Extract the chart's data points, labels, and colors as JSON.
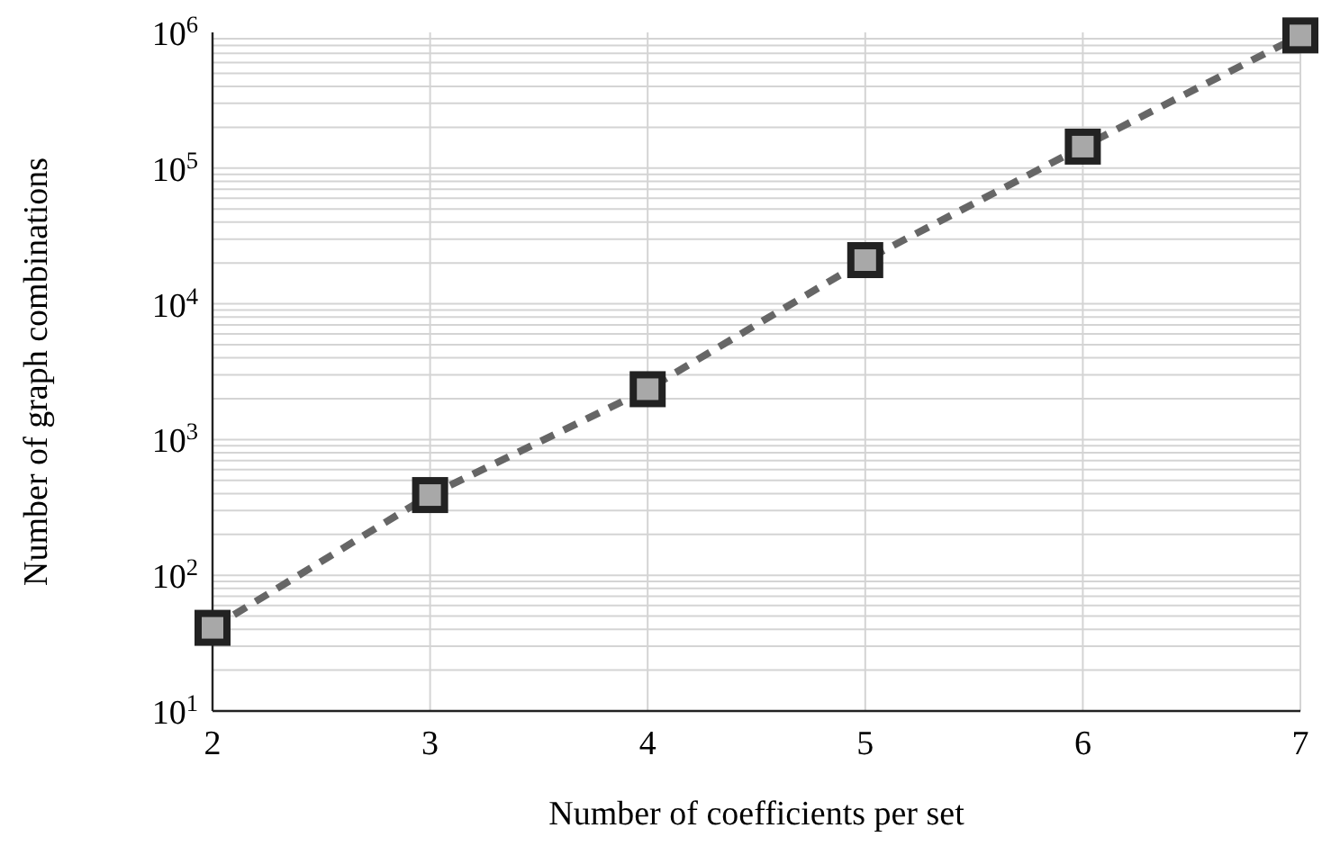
{
  "chart_data": {
    "type": "line",
    "xlabel": "Number of coefficients per set",
    "ylabel": "Number of graph combinations",
    "x": [
      2,
      3,
      4,
      5,
      6,
      7
    ],
    "series": [
      {
        "color": "#666666",
        "values": [
          41,
          390,
          2350,
          21000,
          144000,
          950000
        ]
      }
    ],
    "xlim": [
      2,
      7
    ],
    "xticks": [
      2,
      3,
      4,
      5,
      6,
      7
    ],
    "ylim": [
      10,
      1000000
    ],
    "yticks": [
      {
        "value": 10,
        "label": "10$^{1}$"
      },
      {
        "value": 100,
        "label": "10$^{2}$"
      },
      {
        "value": 1000,
        "label": "10$^{3}$"
      },
      {
        "value": 10000,
        "label": "10$^{4}$"
      },
      {
        "value": 100000,
        "label": "10$^{5}$"
      },
      {
        "value": 1000000,
        "label": "10$^{6}$"
      }
    ],
    "log": true,
    "grid": true,
    "marker": "square",
    "line_style": "dashed"
  }
}
